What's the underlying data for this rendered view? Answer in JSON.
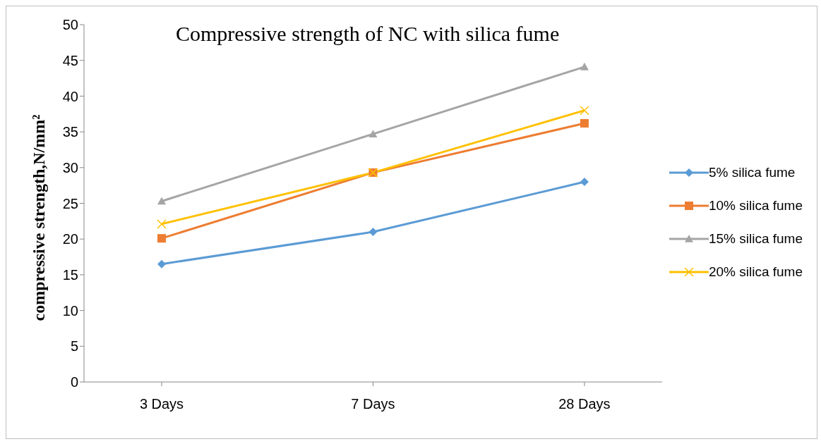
{
  "chart_data": {
    "type": "line",
    "title": "Compressive strength of NC with silica fume",
    "ylabel": "compressive strength,N/mm²",
    "categories": [
      "3 Days",
      "7 Days",
      "28 Days"
    ],
    "series": [
      {
        "name": "5% silica fume",
        "color": "#5b9bd5",
        "marker": "diamond",
        "values": [
          16.5,
          21.0,
          28.0
        ]
      },
      {
        "name": "10% silica fume",
        "color": "#ed7d31",
        "marker": "square",
        "values": [
          20.1,
          29.3,
          36.2
        ]
      },
      {
        "name": "15% silica fume",
        "color": "#a5a5a5",
        "marker": "triangle",
        "values": [
          25.3,
          34.7,
          44.1
        ]
      },
      {
        "name": "20% silica fume",
        "color": "#ffc000",
        "marker": "cross",
        "values": [
          22.1,
          29.3,
          38.0
        ]
      }
    ],
    "ylim": [
      0,
      50
    ],
    "yticks": [
      0,
      5,
      10,
      15,
      20,
      25,
      30,
      35,
      40,
      45,
      50
    ],
    "legend": "right",
    "line_style": "solid"
  }
}
